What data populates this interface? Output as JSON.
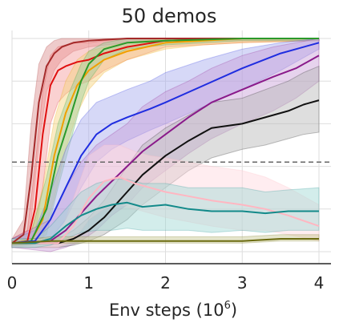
{
  "chart_data": {
    "type": "line",
    "title": "50 demos",
    "xlabel": "Env steps (10",
    "xlabel_exp": "6",
    "xlabel_close": ")",
    "ylabel": "",
    "xlim": [
      0,
      4.2
    ],
    "ylim": [
      0,
      1.05
    ],
    "xticks": [
      0,
      1,
      2,
      3,
      4
    ],
    "ytick_grid": [
      0,
      0.2,
      0.4,
      0.6,
      0.8,
      1.0
    ],
    "grid": true,
    "reference_line": {
      "y": 0.42,
      "style": "dashed",
      "color": "#666666"
    },
    "series": [
      {
        "color": "#a52a2a",
        "band_color": "#d98b8b",
        "x": [
          0,
          0.15,
          0.25,
          0.35,
          0.45,
          0.55,
          0.65,
          0.8,
          1.0,
          1.5,
          2.0,
          3.0,
          4.0
        ],
        "y": [
          0.04,
          0.08,
          0.35,
          0.7,
          0.87,
          0.93,
          0.96,
          0.98,
          0.99,
          1.0,
          1.0,
          1.0,
          1.0
        ],
        "lo": [
          0.02,
          0.03,
          0.15,
          0.5,
          0.75,
          0.85,
          0.9,
          0.94,
          0.96,
          0.98,
          0.99,
          0.99,
          0.99
        ],
        "hi": [
          0.06,
          0.15,
          0.6,
          0.88,
          0.96,
          0.99,
          1.0,
          1.0,
          1.0,
          1.0,
          1.0,
          1.0,
          1.0
        ]
      },
      {
        "color": "#e01010",
        "band_color": "#f59a9a",
        "x": [
          0,
          0.2,
          0.3,
          0.4,
          0.5,
          0.6,
          0.7,
          0.85,
          1.0,
          1.2,
          1.5,
          2.0,
          3.0,
          4.0
        ],
        "y": [
          0.04,
          0.05,
          0.2,
          0.55,
          0.78,
          0.85,
          0.87,
          0.89,
          0.9,
          0.93,
          0.96,
          0.99,
          1.0,
          1.0
        ],
        "lo": [
          0.02,
          0.03,
          0.08,
          0.3,
          0.6,
          0.7,
          0.74,
          0.78,
          0.8,
          0.85,
          0.9,
          0.96,
          0.98,
          0.99
        ],
        "hi": [
          0.06,
          0.1,
          0.4,
          0.75,
          0.92,
          0.96,
          0.97,
          0.98,
          0.98,
          0.99,
          1.0,
          1.0,
          1.0,
          1.0
        ]
      },
      {
        "color": "#f0a000",
        "band_color": "#f7d27a",
        "x": [
          0,
          0.25,
          0.4,
          0.55,
          0.7,
          0.85,
          1.0,
          1.2,
          1.5,
          2.0,
          2.5,
          3.0,
          4.0
        ],
        "y": [
          0.04,
          0.05,
          0.15,
          0.45,
          0.65,
          0.78,
          0.85,
          0.9,
          0.94,
          0.98,
          0.99,
          1.0,
          1.0
        ],
        "lo": [
          0.02,
          0.03,
          0.06,
          0.25,
          0.48,
          0.65,
          0.76,
          0.84,
          0.9,
          0.95,
          0.97,
          0.98,
          0.99
        ],
        "hi": [
          0.06,
          0.09,
          0.3,
          0.62,
          0.8,
          0.9,
          0.94,
          0.96,
          0.98,
          1.0,
          1.0,
          1.0,
          1.0
        ]
      },
      {
        "color": "#2a9a2a",
        "band_color": "#9ccf9c",
        "x": [
          0,
          0.25,
          0.45,
          0.6,
          0.75,
          0.9,
          1.0,
          1.2,
          1.5,
          2.0,
          3.0,
          4.0
        ],
        "y": [
          0.04,
          0.05,
          0.2,
          0.45,
          0.62,
          0.8,
          0.88,
          0.95,
          0.98,
          0.99,
          1.0,
          1.0
        ],
        "lo": [
          0.02,
          0.03,
          0.08,
          0.3,
          0.5,
          0.7,
          0.8,
          0.9,
          0.95,
          0.97,
          0.99,
          0.99
        ],
        "hi": [
          0.06,
          0.09,
          0.35,
          0.6,
          0.75,
          0.88,
          0.94,
          0.98,
          1.0,
          1.0,
          1.0,
          1.0
        ]
      },
      {
        "color": "#1f2de0",
        "band_color": "#a3a8ee",
        "x": [
          0,
          0.3,
          0.5,
          0.7,
          0.9,
          1.1,
          1.3,
          1.5,
          1.8,
          2.0,
          2.5,
          3.0,
          3.5,
          4.0
        ],
        "y": [
          0.04,
          0.05,
          0.15,
          0.3,
          0.45,
          0.55,
          0.6,
          0.63,
          0.67,
          0.7,
          0.78,
          0.86,
          0.93,
          0.98
        ],
        "lo": [
          0.02,
          0.03,
          0.06,
          0.15,
          0.3,
          0.42,
          0.48,
          0.52,
          0.57,
          0.6,
          0.68,
          0.76,
          0.85,
          0.95
        ],
        "hi": [
          0.06,
          0.1,
          0.28,
          0.48,
          0.62,
          0.7,
          0.73,
          0.76,
          0.8,
          0.84,
          0.9,
          0.95,
          0.98,
          1.0
        ]
      },
      {
        "color": "#8a1a8a",
        "band_color": "#c89ed8",
        "x": [
          0,
          0.5,
          0.7,
          0.9,
          1.1,
          1.3,
          1.5,
          1.7,
          2.0,
          2.3,
          2.6,
          3.0,
          3.4,
          3.7,
          4.0
        ],
        "y": [
          0.04,
          0.05,
          0.1,
          0.18,
          0.26,
          0.33,
          0.4,
          0.47,
          0.55,
          0.63,
          0.7,
          0.76,
          0.82,
          0.86,
          0.92
        ],
        "lo": [
          0.02,
          0.0,
          0.02,
          0.05,
          0.1,
          0.17,
          0.22,
          0.3,
          0.38,
          0.46,
          0.53,
          0.6,
          0.66,
          0.72,
          0.8
        ],
        "hi": [
          0.06,
          0.15,
          0.3,
          0.42,
          0.5,
          0.55,
          0.6,
          0.68,
          0.75,
          0.8,
          0.86,
          0.92,
          0.96,
          0.98,
          1.0
        ]
      },
      {
        "color": "#111111",
        "band_color": "#b5b5b5",
        "x": [
          0,
          0.6,
          0.8,
          1.0,
          1.2,
          1.5,
          1.7,
          2.0,
          2.3,
          2.6,
          3.0,
          3.3,
          3.6,
          3.8,
          4.0
        ],
        "y": [
          0.04,
          0.04,
          0.06,
          0.1,
          0.16,
          0.28,
          0.36,
          0.45,
          0.52,
          0.58,
          0.6,
          0.63,
          0.66,
          0.69,
          0.71
        ],
        "lo": [
          0.02,
          0.02,
          0.03,
          0.05,
          0.08,
          0.15,
          0.22,
          0.3,
          0.38,
          0.44,
          0.48,
          0.5,
          0.53,
          0.55,
          0.56
        ],
        "hi": [
          0.06,
          0.06,
          0.1,
          0.16,
          0.24,
          0.4,
          0.5,
          0.58,
          0.64,
          0.7,
          0.72,
          0.76,
          0.8,
          0.84,
          0.87
        ]
      },
      {
        "color": "#ffb6c1",
        "band_color": "#ffd6dd",
        "x": [
          0,
          0.6,
          0.8,
          1.0,
          1.2,
          1.4,
          1.6,
          1.8,
          2.0,
          2.3,
          2.6,
          3.0,
          3.3,
          3.6,
          4.0
        ],
        "y": [
          0.04,
          0.04,
          0.12,
          0.25,
          0.33,
          0.35,
          0.32,
          0.3,
          0.28,
          0.26,
          0.24,
          0.22,
          0.2,
          0.17,
          0.12
        ],
        "lo": [
          0.02,
          0.02,
          0.05,
          0.15,
          0.2,
          0.22,
          0.2,
          0.18,
          0.16,
          0.14,
          0.12,
          0.1,
          0.1,
          0.08,
          0.05
        ],
        "hi": [
          0.06,
          0.06,
          0.25,
          0.45,
          0.5,
          0.5,
          0.47,
          0.45,
          0.44,
          0.42,
          0.4,
          0.38,
          0.35,
          0.3,
          0.22
        ]
      },
      {
        "color": "#138a8a",
        "band_color": "#9ed6d2",
        "x": [
          0,
          0.3,
          0.5,
          0.7,
          0.9,
          1.1,
          1.3,
          1.5,
          1.7,
          2.0,
          2.3,
          2.6,
          3.0,
          3.3,
          3.6,
          4.0
        ],
        "y": [
          0.04,
          0.04,
          0.06,
          0.12,
          0.17,
          0.2,
          0.22,
          0.23,
          0.21,
          0.22,
          0.2,
          0.19,
          0.19,
          0.18,
          0.19,
          0.19
        ],
        "lo": [
          0.02,
          0.02,
          0.03,
          0.06,
          0.09,
          0.1,
          0.1,
          0.11,
          0.1,
          0.1,
          0.1,
          0.09,
          0.1,
          0.09,
          0.1,
          0.1
        ],
        "hi": [
          0.06,
          0.06,
          0.12,
          0.2,
          0.28,
          0.32,
          0.34,
          0.34,
          0.32,
          0.32,
          0.3,
          0.3,
          0.3,
          0.28,
          0.29,
          0.3
        ]
      },
      {
        "color": "#6b6b10",
        "band_color": "#c6c68f",
        "x": [
          0,
          0.5,
          1.0,
          1.5,
          2.0,
          2.5,
          3.0,
          3.5,
          4.0
        ],
        "y": [
          0.04,
          0.05,
          0.05,
          0.05,
          0.05,
          0.05,
          0.05,
          0.06,
          0.06
        ],
        "lo": [
          0.03,
          0.04,
          0.04,
          0.04,
          0.04,
          0.04,
          0.04,
          0.05,
          0.05
        ],
        "hi": [
          0.05,
          0.07,
          0.07,
          0.07,
          0.07,
          0.07,
          0.07,
          0.08,
          0.08
        ]
      }
    ]
  }
}
